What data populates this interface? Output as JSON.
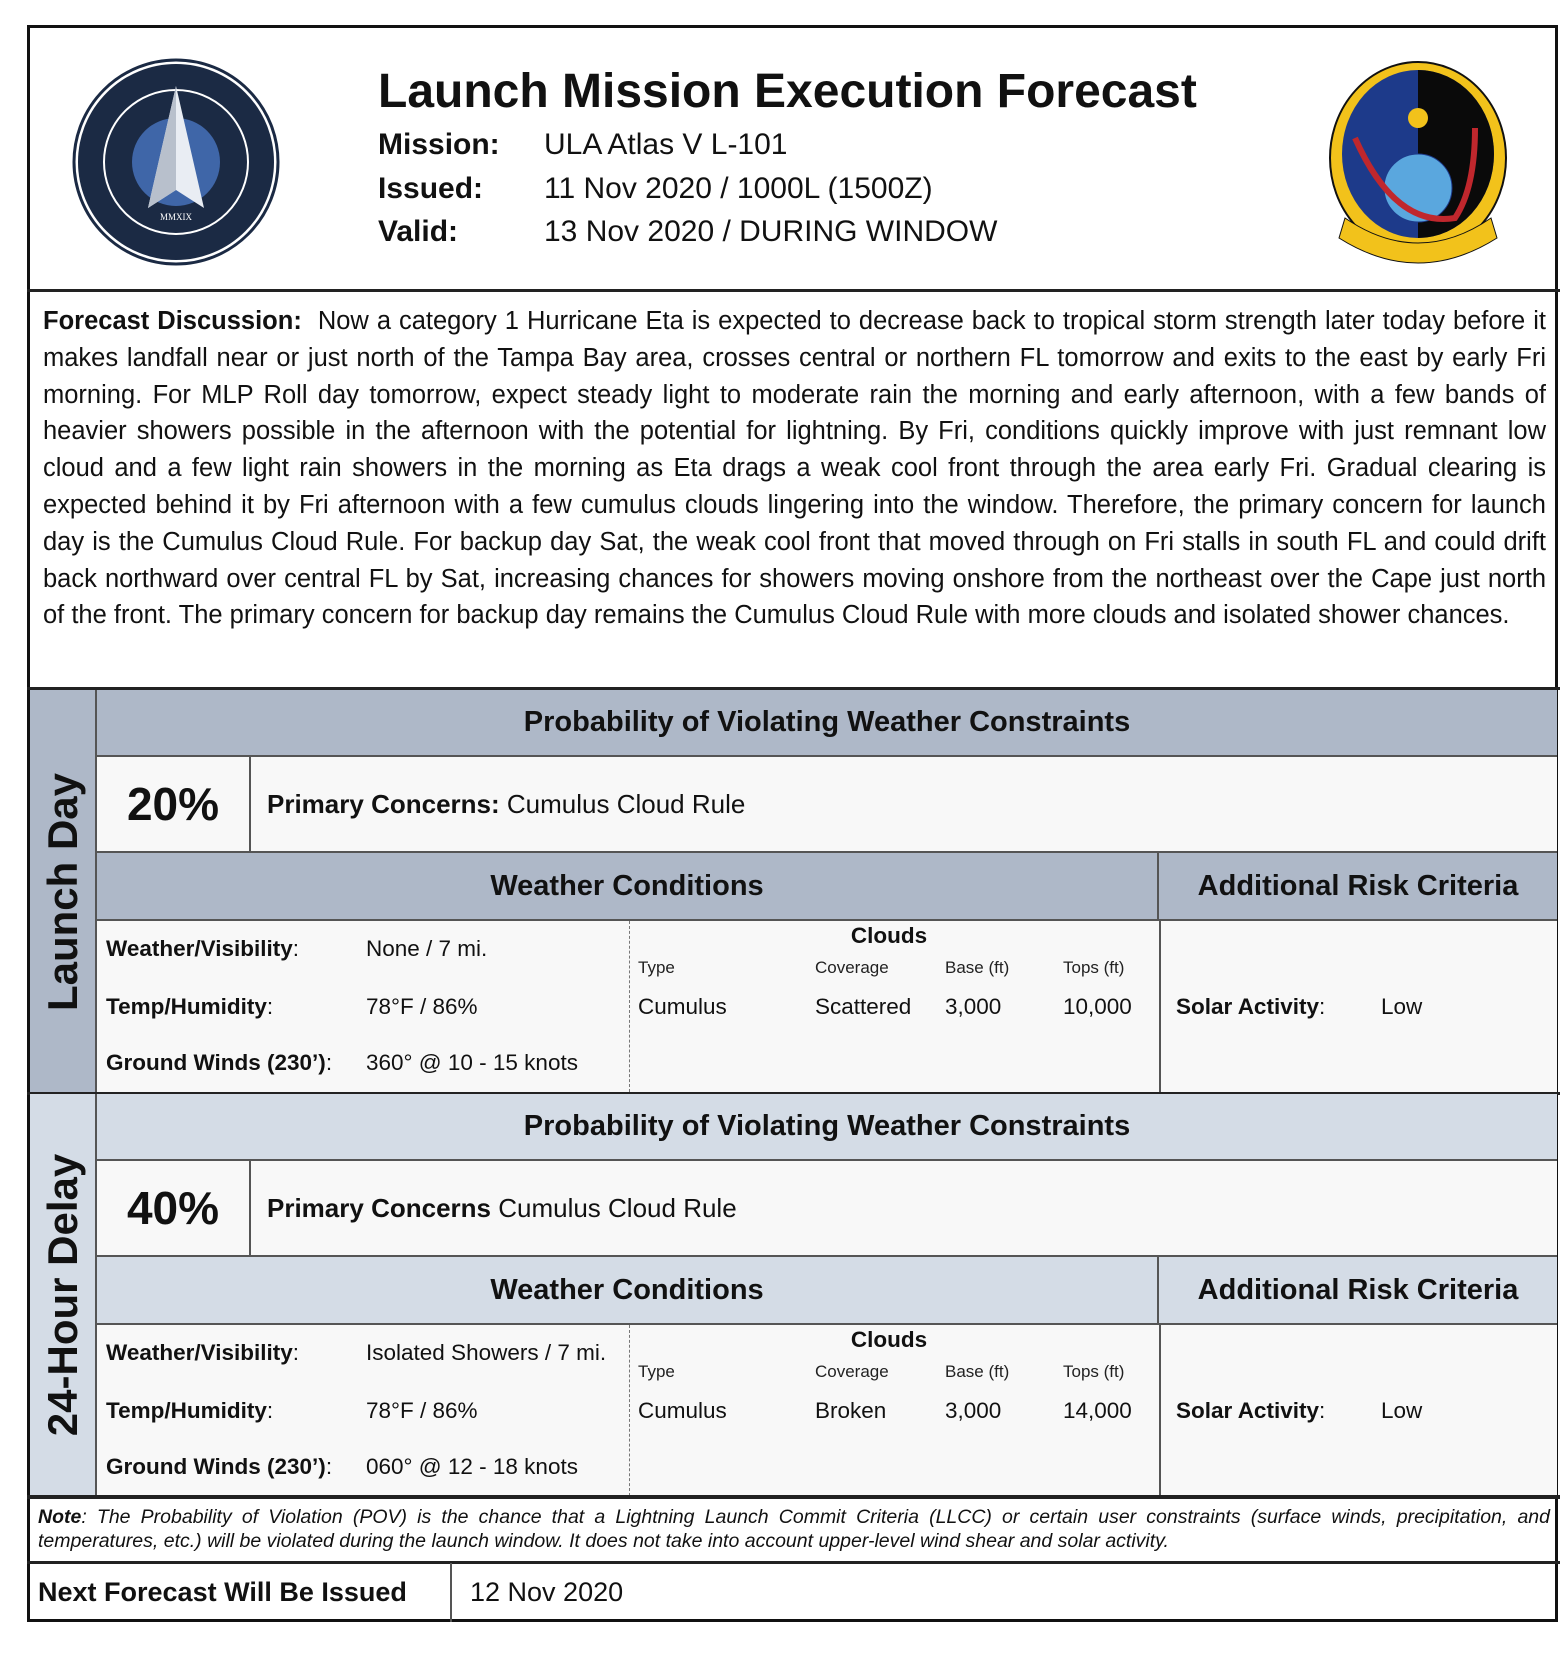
{
  "header": {
    "title": "Launch Mission Execution Forecast",
    "mission_label": "Mission:",
    "mission": "ULA Atlas V L-101",
    "issued_label": "Issued:",
    "issued": "11 Nov 2020 / 1000L (1500Z)",
    "valid_label": "Valid:",
    "valid": "13 Nov 2020 / DURING WINDOW",
    "left_logo": "United States Space Force · Department of the Air Force · MMXIX",
    "right_logo": "45th Weather Squadron"
  },
  "discussion": {
    "label": "Forecast Discussion:",
    "text": "Now a category 1 Hurricane Eta is expected to decrease back to tropical storm strength later today before it makes landfall near or just north of the Tampa Bay area, crosses central or northern FL tomorrow and exits to the east by early Fri morning. For MLP Roll day tomorrow, expect steady light to moderate rain the morning and early afternoon, with a few bands of heavier showers possible in the afternoon with the potential for lightning.  By Fri, conditions quickly improve with just remnant low cloud and a few light rain showers in the morning as Eta drags a weak cool front through the area early Fri.  Gradual clearing is expected behind it by Fri afternoon with a few cumulus clouds lingering into the window.  Therefore, the primary concern for launch day is the Cumulus Cloud Rule.  For backup day Sat, the weak cool front that moved through on Fri stalls in south FL and could drift back northward over central FL by Sat, increasing chances for showers moving onshore from the northeast over the Cape just north of the front.  The primary concern for backup day remains the Cumulus Cloud Rule with more clouds and isolated shower chances."
  },
  "sections": [
    {
      "label": "Launch Day",
      "header_color": "#aeb8c8",
      "pov_title": "Probability of Violating Weather Constraints",
      "pov": "20%",
      "concerns_label": "Primary Concerns:",
      "concerns": "Cumulus Cloud Rule",
      "wx_title": "Weather Conditions",
      "risk_title": "Additional Risk Criteria",
      "wx_label": "Weather/Visibility",
      "wx": "None / 7 mi.",
      "temp_label": "Temp/Humidity",
      "temp": "78°F / 86%",
      "wind_label": "Ground Winds (230’)",
      "wind": "360° @ 10 - 15 knots",
      "clouds_title": "Clouds",
      "cloud_cols": [
        "Type",
        "Coverage",
        "Base (ft)",
        "Tops (ft)"
      ],
      "cloud_vals": [
        "Cumulus",
        "Scattered",
        "3,000",
        "10,000"
      ],
      "solar_label": "Solar Activity",
      "solar": "Low"
    },
    {
      "label": "24-Hour Delay",
      "header_color": "#d4dce6",
      "pov_title": "Probability of Violating Weather Constraints",
      "pov": "40%",
      "concerns_label": "Primary Concerns",
      "concerns": "Cumulus Cloud Rule",
      "wx_title": "Weather Conditions",
      "risk_title": "Additional Risk Criteria",
      "wx_label": "Weather/Visibility",
      "wx": "Isolated Showers / 7 mi.",
      "temp_label": "Temp/Humidity",
      "temp": "78°F / 86%",
      "wind_label": "Ground Winds (230’)",
      "wind": "060° @ 12 - 18 knots",
      "clouds_title": "Clouds",
      "cloud_cols": [
        "Type",
        "Coverage",
        "Base (ft)",
        "Tops (ft)"
      ],
      "cloud_vals": [
        "Cumulus",
        "Broken",
        "3,000",
        "14,000"
      ],
      "solar_label": "Solar Activity",
      "solar": "Low"
    }
  ],
  "note": {
    "label": "Note",
    "text": ": The Probability of Violation (POV) is the chance that a Lightning Launch Commit Criteria (LLCC) or certain user constraints (surface winds, precipitation, and temperatures, etc.) will be violated during the launch window. It does not take into account upper-level wind shear and solar activity."
  },
  "next": {
    "label": "Next Forecast Will Be Issued",
    "value": "12 Nov 2020"
  }
}
